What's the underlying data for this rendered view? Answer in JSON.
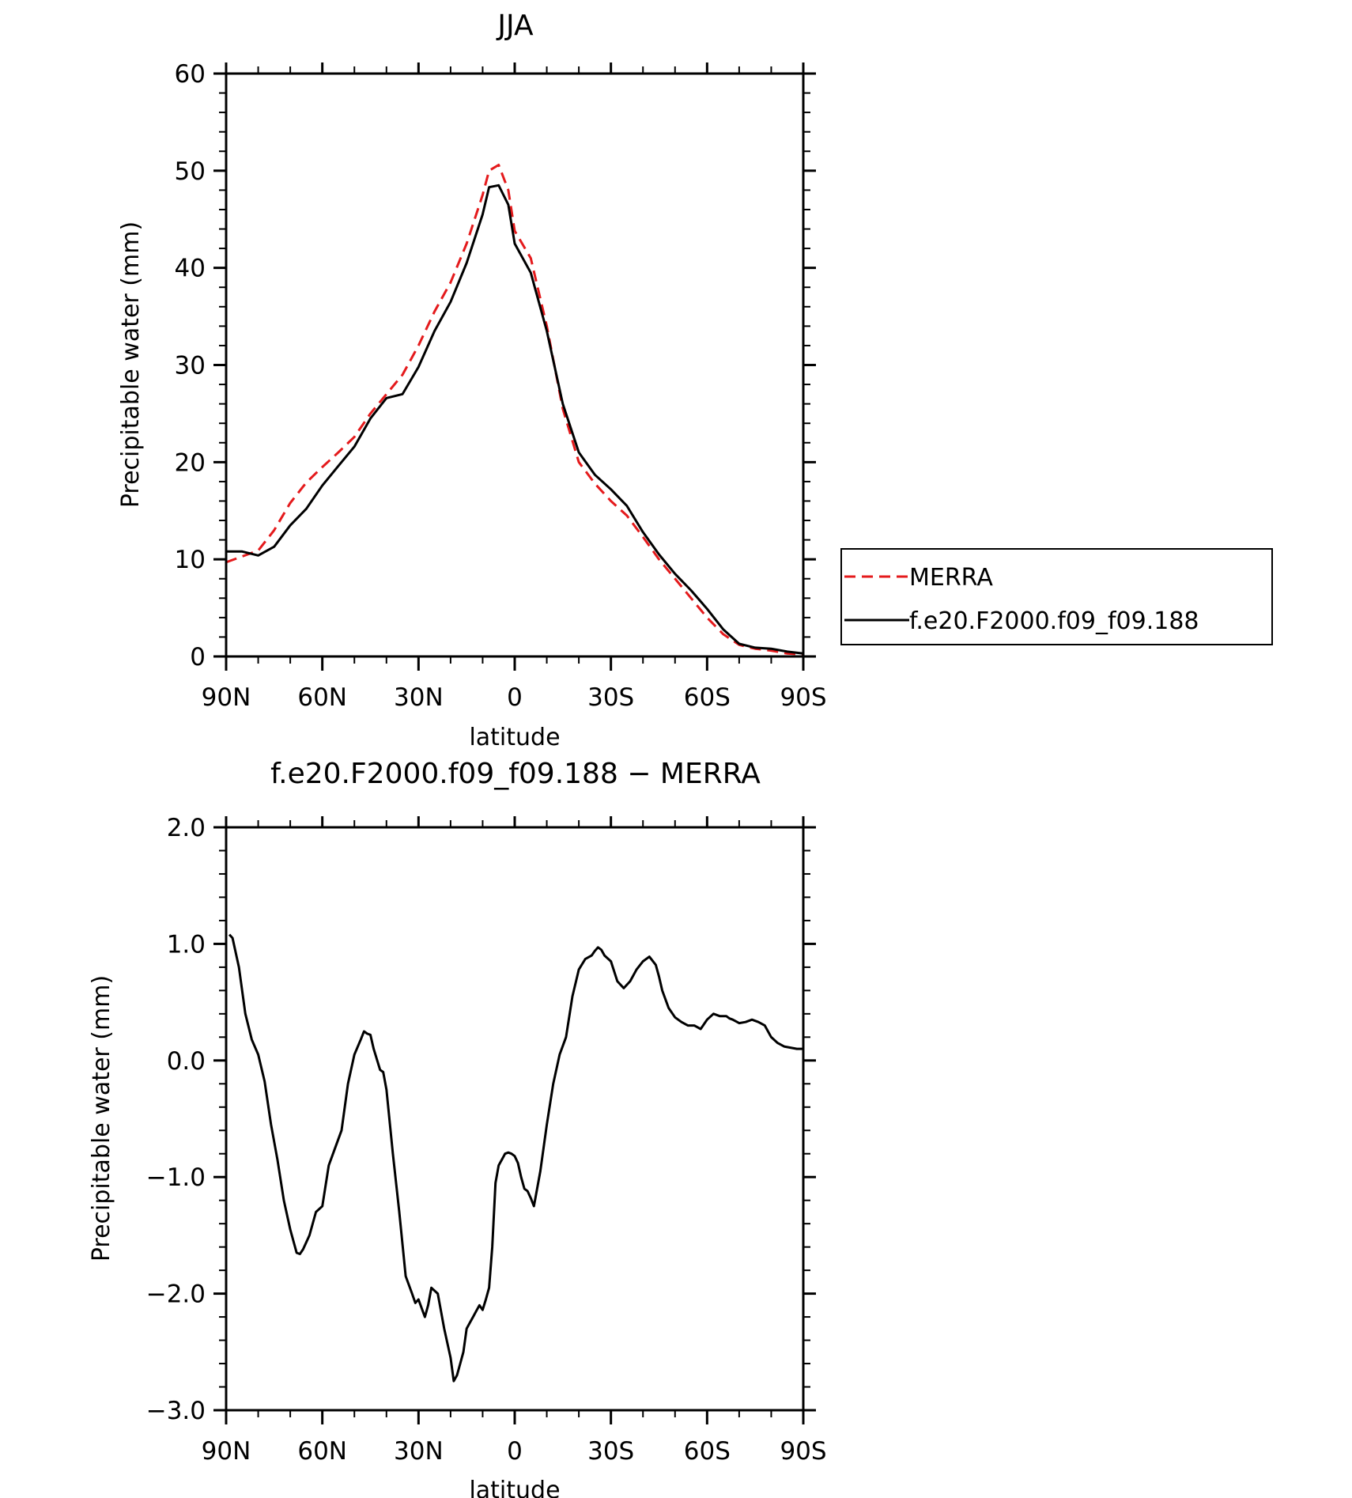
{
  "chart_data": [
    {
      "type": "line",
      "title": "JJA",
      "xlabel": "latitude",
      "ylabel": "Precipitable water (mm)",
      "xlim": [
        90,
        -90
      ],
      "ylim": [
        0,
        60
      ],
      "x_ticks": [
        90,
        60,
        30,
        0,
        -30,
        -60,
        -90
      ],
      "x_tick_labels": [
        "90N",
        "60N",
        "30N",
        "0",
        "30S",
        "60S",
        "90S"
      ],
      "y_ticks": [
        0,
        10,
        20,
        30,
        40,
        50,
        60
      ],
      "y_tick_labels": [
        "0",
        "10",
        "20",
        "30",
        "40",
        "50",
        "60"
      ],
      "legend_position": "right",
      "series": [
        {
          "name": "MERRA",
          "color": "#e41a1c",
          "style": "dashed",
          "x": [
            90,
            85,
            80,
            75,
            70,
            65,
            60,
            55,
            50,
            45,
            40,
            35,
            30,
            25,
            20,
            15,
            10,
            8,
            5,
            2,
            0,
            -5,
            -10,
            -15,
            -20,
            -25,
            -30,
            -35,
            -40,
            -45,
            -50,
            -55,
            -60,
            -65,
            -70,
            -75,
            -80,
            -85,
            -90
          ],
          "y": [
            9.7,
            10.3,
            10.9,
            13.0,
            15.8,
            17.9,
            19.5,
            21.0,
            22.6,
            25.0,
            27.0,
            29.0,
            32.0,
            35.5,
            38.5,
            42.5,
            47.5,
            50.0,
            50.6,
            48.0,
            43.8,
            41.0,
            34.0,
            25.5,
            20.0,
            17.8,
            16.0,
            14.5,
            12.3,
            10.0,
            8.0,
            6.0,
            4.0,
            2.3,
            1.2,
            0.8,
            0.6,
            0.3,
            0.2
          ]
        },
        {
          "name": "f.e20.F2000.f09_f09.188",
          "color": "#000000",
          "style": "solid",
          "x": [
            90,
            85,
            80,
            75,
            70,
            65,
            60,
            55,
            50,
            45,
            40,
            35,
            30,
            25,
            20,
            15,
            10,
            8,
            5,
            2,
            0,
            -5,
            -10,
            -15,
            -20,
            -25,
            -30,
            -35,
            -40,
            -45,
            -50,
            -55,
            -60,
            -65,
            -70,
            -75,
            -80,
            -85,
            -90
          ],
          "y": [
            10.8,
            10.8,
            10.4,
            11.3,
            13.5,
            15.2,
            17.6,
            19.6,
            21.6,
            24.5,
            26.6,
            27.0,
            29.8,
            33.5,
            36.5,
            40.5,
            45.5,
            48.3,
            48.5,
            46.5,
            42.5,
            39.5,
            33.5,
            26.0,
            21.0,
            18.7,
            17.2,
            15.5,
            12.8,
            10.5,
            8.5,
            6.8,
            4.9,
            2.8,
            1.3,
            0.9,
            0.8,
            0.5,
            0.3
          ]
        }
      ]
    },
    {
      "type": "line",
      "title": "f.e20.F2000.f09_f09.188 − MERRA",
      "xlabel": "latitude",
      "ylabel": "Precipitable water (mm)",
      "xlim": [
        90,
        -90
      ],
      "ylim": [
        -3.0,
        2.0
      ],
      "x_ticks": [
        90,
        60,
        30,
        0,
        -30,
        -60,
        -90
      ],
      "x_tick_labels": [
        "90N",
        "60N",
        "30N",
        "0",
        "30S",
        "60S",
        "90S"
      ],
      "y_ticks": [
        -3.0,
        -2.0,
        -1.0,
        0.0,
        1.0,
        2.0
      ],
      "y_tick_labels": [
        "−3.0",
        "−2.0",
        "−1.0",
        "0.0",
        "1.0",
        "2.0"
      ],
      "series": [
        {
          "color": "#000000",
          "style": "solid",
          "x": [
            89,
            88,
            86,
            84,
            82,
            80,
            78,
            76,
            74,
            72,
            70,
            68,
            67,
            66,
            64,
            62,
            60,
            58,
            56,
            54,
            52,
            50,
            48,
            47,
            46,
            45,
            44,
            42,
            41,
            40,
            38,
            36,
            34,
            32,
            31,
            30,
            28,
            27,
            26,
            24,
            22,
            20,
            19,
            18,
            17,
            16,
            15,
            14,
            13,
            12,
            11,
            10,
            9,
            8,
            7,
            6,
            5,
            4,
            3,
            2,
            1,
            0,
            -1,
            -2,
            -3,
            -4,
            -5,
            -6,
            -8,
            -10,
            -12,
            -14,
            -16,
            -18,
            -20,
            -22,
            -24,
            -25,
            -26,
            -27,
            -28,
            -30,
            -32,
            -34,
            -36,
            -38,
            -40,
            -42,
            -44,
            -45,
            -46,
            -48,
            -50,
            -52,
            -54,
            -56,
            -58,
            -60,
            -62,
            -64,
            -66,
            -67,
            -68,
            -70,
            -72,
            -74,
            -76,
            -78,
            -80,
            -82,
            -84,
            -86,
            -88,
            -90
          ],
          "y": [
            1.08,
            1.05,
            0.8,
            0.4,
            0.18,
            0.05,
            -0.18,
            -0.55,
            -0.85,
            -1.2,
            -1.45,
            -1.65,
            -1.66,
            -1.62,
            -1.5,
            -1.3,
            -1.25,
            -0.9,
            -0.75,
            -0.6,
            -0.2,
            0.05,
            0.18,
            0.25,
            0.23,
            0.22,
            0.1,
            -0.08,
            -0.1,
            -0.25,
            -0.8,
            -1.3,
            -1.85,
            -2.0,
            -2.08,
            -2.05,
            -2.2,
            -2.1,
            -1.95,
            -2.0,
            -2.3,
            -2.55,
            -2.75,
            -2.7,
            -2.6,
            -2.5,
            -2.3,
            -2.25,
            -2.2,
            -2.15,
            -2.1,
            -2.14,
            -2.05,
            -1.95,
            -1.6,
            -1.05,
            -0.9,
            -0.85,
            -0.8,
            -0.79,
            -0.8,
            -0.82,
            -0.88,
            -1.0,
            -1.1,
            -1.12,
            -1.18,
            -1.25,
            -0.95,
            -0.55,
            -0.2,
            0.05,
            0.2,
            0.55,
            0.78,
            0.87,
            0.9,
            0.94,
            0.97,
            0.95,
            0.9,
            0.85,
            0.68,
            0.62,
            0.68,
            0.78,
            0.85,
            0.89,
            0.82,
            0.72,
            0.6,
            0.45,
            0.37,
            0.33,
            0.3,
            0.3,
            0.27,
            0.35,
            0.4,
            0.38,
            0.38,
            0.36,
            0.35,
            0.32,
            0.33,
            0.35,
            0.33,
            0.3,
            0.2,
            0.15,
            0.12,
            0.11,
            0.1,
            0.1
          ]
        }
      ]
    }
  ]
}
